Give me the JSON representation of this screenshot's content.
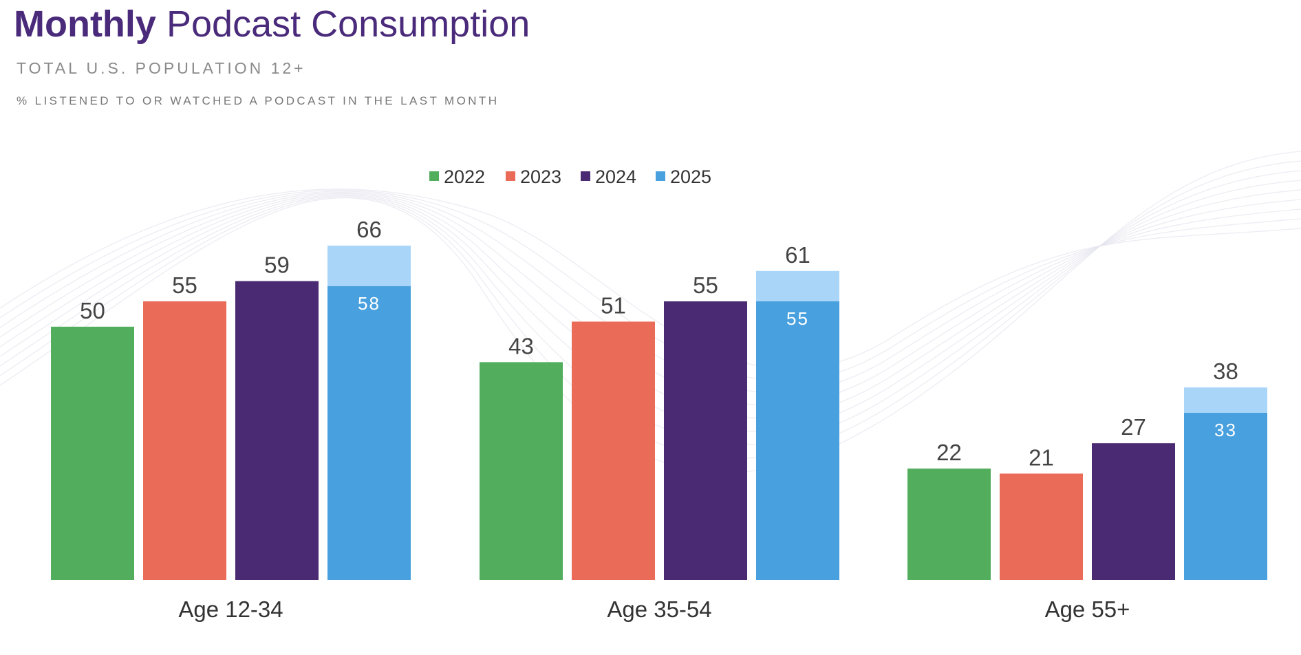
{
  "title_bold": "Monthly",
  "title_rest": "Podcast Consumption",
  "subtitle": "TOTAL U.S. POPULATION 12+",
  "note": "% LISTENED TO OR WATCHED A PODCAST IN THE LAST MONTH",
  "chart_data": {
    "type": "bar",
    "categories": [
      "Age 12-34",
      "Age 35-54",
      "Age 55+"
    ],
    "series": [
      {
        "name": "2022",
        "color": "#52ae5d",
        "values": [
          50,
          43,
          22
        ]
      },
      {
        "name": "2023",
        "color": "#ea6b58",
        "values": [
          55,
          51,
          21
        ]
      },
      {
        "name": "2024",
        "color": "#4a2a72",
        "values": [
          59,
          55,
          27
        ]
      },
      {
        "name": "2025",
        "color": "#49a0de",
        "values": [
          66,
          61,
          38
        ],
        "inner_values": [
          58,
          55,
          33
        ],
        "light_color": "#a8d5f8"
      }
    ],
    "ylim": [
      0,
      70
    ],
    "legend": "top-center",
    "grid": false
  }
}
